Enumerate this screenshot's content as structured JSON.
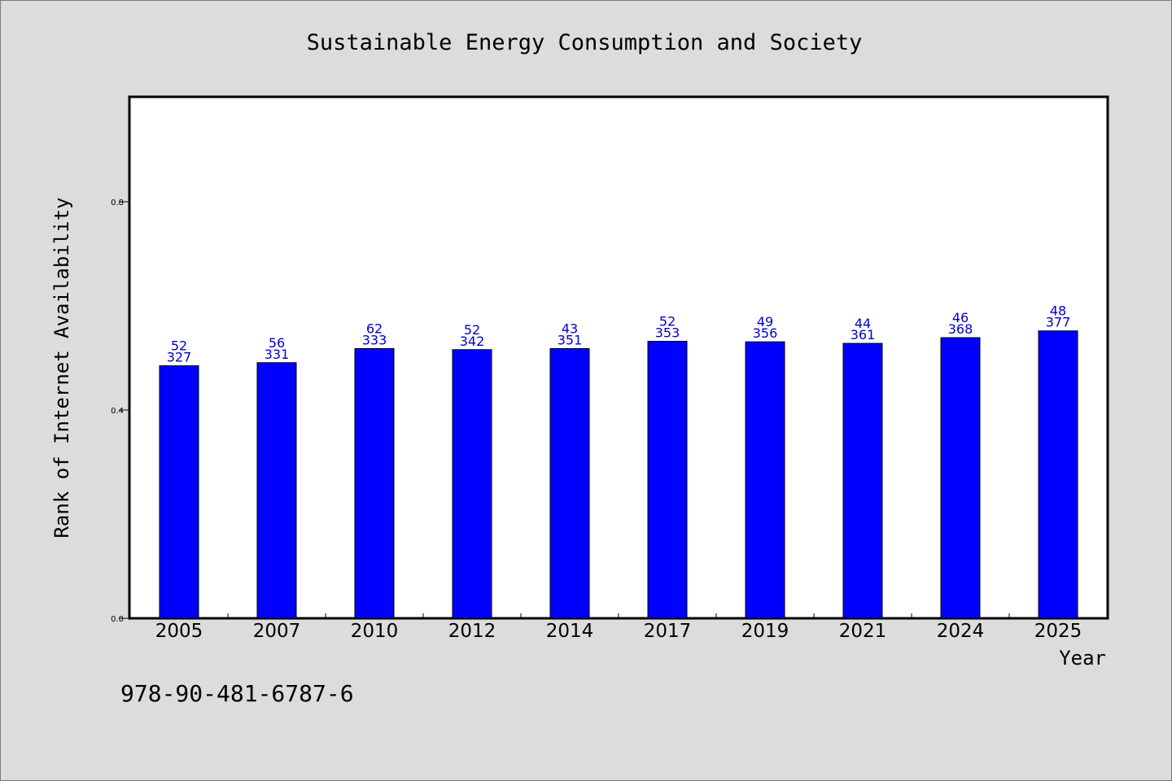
{
  "chart_data": {
    "type": "bar",
    "title": "Sustainable Energy Consumption and Society",
    "xlabel": "Year",
    "ylabel": "Rank of Internet Availability",
    "categories": [
      "2005",
      "2007",
      "2010",
      "2012",
      "2014",
      "2017",
      "2019",
      "2021",
      "2024",
      "2025"
    ],
    "series": [
      {
        "values": [
          0.485,
          0.491,
          0.518,
          0.516,
          0.518,
          0.532,
          0.531,
          0.528,
          0.539,
          0.552
        ],
        "labels": [
          [
            "52",
            "327"
          ],
          [
            "56",
            "331"
          ],
          [
            "62",
            "333"
          ],
          [
            "52",
            "342"
          ],
          [
            "43",
            "351"
          ],
          [
            "52",
            "353"
          ],
          [
            "49",
            "356"
          ],
          [
            "44",
            "361"
          ],
          [
            "46",
            "368"
          ],
          [
            "48",
            "377"
          ]
        ],
        "color": "#0000ff"
      }
    ],
    "ylim": [
      0,
      1.0
    ],
    "yticks": [
      "0.0",
      "0.4",
      "0.8"
    ],
    "ytick_values": [
      0,
      0.4,
      0.8
    ],
    "grid": false,
    "legend": "none",
    "plot_background": "#ffffff",
    "page_background": "#dcdcdc",
    "label_color": "#0000cc"
  },
  "footer": {
    "text": "978-90-481-6787-6"
  }
}
